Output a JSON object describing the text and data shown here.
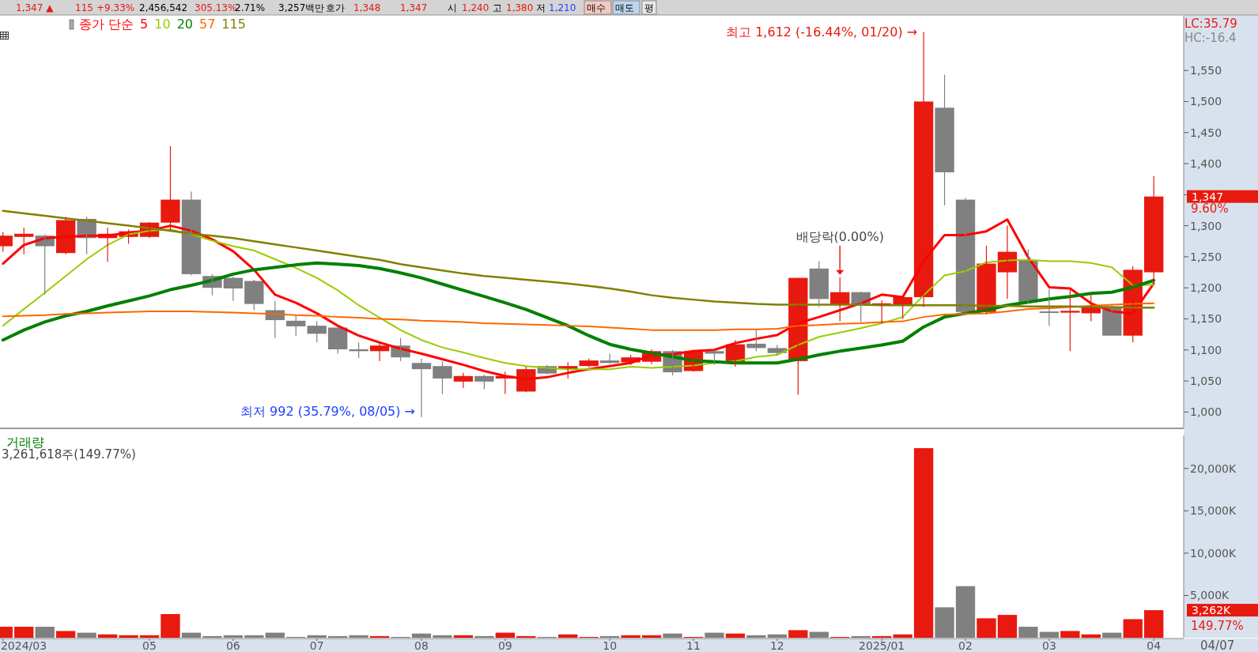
{
  "chart_data": [
    {
      "type": "candlestick",
      "legend_title": "종가 단순",
      "legend": "top left",
      "tick_labels": "y",
      "x": [
        "2024-03-18",
        "2024-03-25",
        "2024-04-01",
        "2024-04-08",
        "2024-04-15",
        "2024-04-22",
        "2024-04-29",
        "2024-05-06",
        "2024-05-13",
        "2024-05-20",
        "2024-05-27",
        "2024-06-03",
        "2024-06-10",
        "2024-06-17",
        "2024-06-24",
        "2024-07-01",
        "2024-07-08",
        "2024-07-15",
        "2024-07-22",
        "2024-07-29",
        "2024-08-05",
        "2024-08-12",
        "2024-08-19",
        "2024-08-26",
        "2024-09-02",
        "2024-09-09",
        "2024-09-16",
        "2024-09-23",
        "2024-09-30",
        "2024-10-07",
        "2024-10-14",
        "2024-10-21",
        "2024-10-28",
        "2024-11-04",
        "2024-11-11",
        "2024-11-18",
        "2024-11-25",
        "2024-12-02",
        "2024-12-09",
        "2024-12-16",
        "2024-12-23",
        "2024-12-30",
        "2025-01-06",
        "2025-01-13",
        "2025-01-20",
        "2025-01-27",
        "2025-02-03",
        "2025-02-10",
        "2025-02-17",
        "2025-02-24",
        "2025-03-03",
        "2025-03-10",
        "2025-03-17",
        "2025-03-24",
        "2025-03-31",
        "2025-04-07"
      ],
      "ohlc": [
        [
          1267,
          1290,
          1258,
          1284
        ],
        [
          1282,
          1297,
          1254,
          1287
        ],
        [
          1284,
          1286,
          1189,
          1267
        ],
        [
          1256,
          1314,
          1254,
          1309
        ],
        [
          1311,
          1314,
          1254,
          1280
        ],
        [
          1280,
          1297,
          1242,
          1287
        ],
        [
          1282,
          1294,
          1271,
          1291
        ],
        [
          1282,
          1306,
          1280,
          1305
        ],
        [
          1305,
          1428,
          1293,
          1342
        ],
        [
          1342,
          1355,
          1220,
          1222
        ],
        [
          1219,
          1222,
          1188,
          1200
        ],
        [
          1216,
          1218,
          1179,
          1199
        ],
        [
          1211,
          1213,
          1164,
          1174
        ],
        [
          1164,
          1179,
          1119,
          1148
        ],
        [
          1147,
          1155,
          1123,
          1138
        ],
        [
          1139,
          1146,
          1112,
          1126
        ],
        [
          1136,
          1138,
          1094,
          1101
        ],
        [
          1101,
          1112,
          1087,
          1098
        ],
        [
          1098,
          1112,
          1082,
          1107
        ],
        [
          1107,
          1119,
          1082,
          1088
        ],
        [
          1079,
          1086,
          992,
          1069
        ],
        [
          1074,
          1082,
          1029,
          1054
        ],
        [
          1049,
          1063,
          1039,
          1058
        ],
        [
          1058,
          1060,
          1037,
          1049
        ],
        [
          1054,
          1065,
          1029,
          1058
        ],
        [
          1033,
          1073,
          1032,
          1069
        ],
        [
          1074,
          1076,
          1061,
          1062
        ],
        [
          1069,
          1080,
          1054,
          1074
        ],
        [
          1074,
          1086,
          1072,
          1083
        ],
        [
          1083,
          1094,
          1078,
          1079
        ],
        [
          1080,
          1092,
          1076,
          1088
        ],
        [
          1081,
          1101,
          1077,
          1098
        ],
        [
          1098,
          1100,
          1059,
          1064
        ],
        [
          1066,
          1100,
          1065,
          1098
        ],
        [
          1098,
          1100,
          1076,
          1094
        ],
        [
          1081,
          1116,
          1073,
          1109
        ],
        [
          1110,
          1132,
          1098,
          1103
        ],
        [
          1103,
          1108,
          1092,
          1095
        ],
        [
          1082,
          1216,
          1028,
          1216
        ],
        [
          1231,
          1243,
          1169,
          1182
        ],
        [
          1172,
          1217,
          1146,
          1193
        ],
        [
          1193,
          1194,
          1145,
          1172
        ],
        [
          1171,
          1180,
          1143,
          1175
        ],
        [
          1173,
          1186,
          1150,
          1185
        ],
        [
          1185,
          1612,
          1169,
          1500
        ],
        [
          1490,
          1543,
          1333,
          1386
        ],
        [
          1342,
          1345,
          1159,
          1161
        ],
        [
          1161,
          1268,
          1158,
          1239
        ],
        [
          1225,
          1300,
          1182,
          1258
        ],
        [
          1244,
          1262,
          1175,
          1177
        ],
        [
          1162,
          1198,
          1139,
          1161
        ],
        [
          1160,
          1196,
          1098,
          1163
        ],
        [
          1159,
          1191,
          1146,
          1171
        ],
        [
          1169,
          1172,
          1122,
          1123
        ],
        [
          1123,
          1235,
          1112,
          1229
        ],
        [
          1225,
          1380,
          1210,
          1347
        ]
      ],
      "colors": [
        "#e8190e",
        "#e8190e",
        "#808080",
        "#e8190e",
        "#808080",
        "#e8190e",
        "#e8190e",
        "#e8190e",
        "#e8190e",
        "#808080",
        "#808080",
        "#808080",
        "#808080",
        "#808080",
        "#808080",
        "#808080",
        "#808080",
        "#808080",
        "#e8190e",
        "#808080",
        "#808080",
        "#808080",
        "#e8190e",
        "#808080",
        "#e8190e",
        "#e8190e",
        "#808080",
        "#e8190e",
        "#e8190e",
        "#808080",
        "#e8190e",
        "#e8190e",
        "#808080",
        "#e8190e",
        "#808080",
        "#e8190e",
        "#808080",
        "#808080",
        "#e8190e",
        "#808080",
        "#e8190e",
        "#808080",
        "#e8190e",
        "#e8190e",
        "#e8190e",
        "#808080",
        "#808080",
        "#e8190e",
        "#e8190e",
        "#808080",
        "#808080",
        "#e8190e",
        "#e8190e",
        "#808080",
        "#e8190e",
        "#e8190e"
      ],
      "series": [
        {
          "type": "line",
          "name": "5",
          "color": "#ff0000",
          "values": [
            1239,
            1269,
            1280,
            1282,
            1284,
            1284,
            1289,
            1292,
            1300,
            1292,
            1278,
            1259,
            1229,
            1189,
            1176,
            1159,
            1139,
            1123,
            1112,
            1102,
            1094,
            1085,
            1076,
            1066,
            1058,
            1053,
            1056,
            1063,
            1069,
            1074,
            1079,
            1092,
            1093,
            1098,
            1100,
            1111,
            1118,
            1124,
            1143,
            1153,
            1164,
            1175,
            1189,
            1185,
            1243,
            1285,
            1285,
            1291,
            1310,
            1249,
            1201,
            1199,
            1175,
            1162,
            1159,
            1207
          ]
        },
        {
          "type": "line",
          "name": "10",
          "color": "#99cc00",
          "values": [
            1139,
            1166,
            1192,
            1219,
            1246,
            1269,
            1286,
            1292,
            1294,
            1286,
            1276,
            1267,
            1260,
            1246,
            1232,
            1216,
            1196,
            1172,
            1152,
            1132,
            1116,
            1104,
            1096,
            1087,
            1079,
            1074,
            1071,
            1069,
            1069,
            1069,
            1073,
            1071,
            1073,
            1075,
            1079,
            1082,
            1089,
            1092,
            1108,
            1121,
            1128,
            1135,
            1143,
            1153,
            1188,
            1220,
            1227,
            1241,
            1244,
            1245,
            1243,
            1243,
            1240,
            1233,
            1204,
            1205
          ]
        },
        {
          "type": "line",
          "name": "20",
          "color": "#008000",
          "values": [
            1116,
            1132,
            1145,
            1155,
            1162,
            1171,
            1179,
            1187,
            1197,
            1204,
            1212,
            1222,
            1229,
            1233,
            1237,
            1240,
            1238,
            1236,
            1231,
            1224,
            1216,
            1206,
            1196,
            1186,
            1176,
            1165,
            1152,
            1139,
            1123,
            1109,
            1101,
            1095,
            1089,
            1083,
            1081,
            1079,
            1079,
            1079,
            1085,
            1092,
            1098,
            1103,
            1108,
            1114,
            1137,
            1153,
            1159,
            1164,
            1172,
            1177,
            1182,
            1186,
            1191,
            1193,
            1201,
            1212
          ]
        },
        {
          "type": "line",
          "name": "57",
          "color": "#ff6600",
          "values": [
            1154,
            1155,
            1156,
            1158,
            1159,
            1160,
            1161,
            1162,
            1162,
            1162,
            1161,
            1160,
            1159,
            1158,
            1156,
            1155,
            1153,
            1152,
            1150,
            1149,
            1147,
            1146,
            1145,
            1143,
            1142,
            1141,
            1140,
            1139,
            1138,
            1136,
            1134,
            1132,
            1132,
            1132,
            1132,
            1133,
            1133,
            1134,
            1139,
            1140,
            1142,
            1143,
            1145,
            1146,
            1153,
            1157,
            1158,
            1159,
            1162,
            1166,
            1167,
            1169,
            1171,
            1173,
            1174,
            1175
          ]
        },
        {
          "type": "line",
          "name": "115",
          "color": "#808000",
          "values": [
            1324,
            1320,
            1316,
            1312,
            1308,
            1304,
            1300,
            1296,
            1292,
            1287,
            1284,
            1280,
            1275,
            1270,
            1265,
            1260,
            1255,
            1250,
            1245,
            1238,
            1233,
            1228,
            1223,
            1219,
            1216,
            1213,
            1210,
            1207,
            1203,
            1199,
            1194,
            1188,
            1184,
            1181,
            1178,
            1176,
            1174,
            1173,
            1173,
            1173,
            1173,
            1173,
            1172,
            1172,
            1172,
            1172,
            1172,
            1171,
            1171,
            1170,
            1170,
            1170,
            1169,
            1169,
            1168,
            1168
          ]
        }
      ],
      "xlim": [
        "2024-03-17",
        "2025-04-17"
      ],
      "ylim": [
        975,
        1638
      ],
      "yticks": [
        {
          "value": 1000,
          "label": "1,000"
        },
        {
          "value": 1050,
          "label": "1,050"
        },
        {
          "value": 1100,
          "label": "1,100"
        },
        {
          "value": 1150,
          "label": "1,150"
        },
        {
          "value": 1200,
          "label": "1,200"
        },
        {
          "value": 1250,
          "label": "1,250"
        },
        {
          "value": 1300,
          "label": "1,300"
        },
        {
          "value": 1350,
          "label": null
        },
        {
          "value": 1400,
          "label": "1,400"
        },
        {
          "value": 1450,
          "label": "1,450"
        },
        {
          "value": 1500,
          "label": "1,500"
        },
        {
          "value": 1550,
          "label": "1,550"
        }
      ],
      "annotations": [
        "1,347 ▲",
        "115",
        "+9.33%",
        "2,456,542",
        "305.13%",
        "2.71%",
        "3,257백만",
        "호가",
        "1,348",
        "1,347",
        "시",
        "1,240",
        "고",
        "1,380",
        "저",
        "1,210",
        "매수",
        "매도",
        "평",
        "LC:35.79",
        "HC:-16.4",
        "9.60%",
        "1,347",
        {
          "text": "최고 1,612 (-16.44%, 01/20) →",
          "x": "2025-01-20",
          "y": 1612
        },
        {
          "text": "최저 992 (35.79%, 08/05) →",
          "x": "2024-08-05",
          "y": 992
        },
        {
          "text": "배당락(0.00%)",
          "x": "2024-12-23",
          "y": 1217
        }
      ]
    },
    {
      "type": "bar",
      "title": "거래량",
      "subtitle": "3,261,618주(149.77%)",
      "x": [
        "2024-03-18",
        "2024-03-25",
        "2024-04-01",
        "2024-04-08",
        "2024-04-15",
        "2024-04-22",
        "2024-04-29",
        "2024-05-06",
        "2024-05-13",
        "2024-05-20",
        "2024-05-27",
        "2024-06-03",
        "2024-06-10",
        "2024-06-17",
        "2024-06-24",
        "2024-07-01",
        "2024-07-08",
        "2024-07-15",
        "2024-07-22",
        "2024-07-29",
        "2024-08-05",
        "2024-08-12",
        "2024-08-19",
        "2024-08-26",
        "2024-09-02",
        "2024-09-09",
        "2024-09-16",
        "2024-09-23",
        "2024-09-30",
        "2024-10-07",
        "2024-10-14",
        "2024-10-21",
        "2024-10-28",
        "2024-11-04",
        "2024-11-11",
        "2024-11-18",
        "2024-11-25",
        "2024-12-02",
        "2024-12-09",
        "2024-12-16",
        "2024-12-23",
        "2024-12-30",
        "2025-01-06",
        "2025-01-13",
        "2025-01-20",
        "2025-01-27",
        "2025-02-03",
        "2025-02-10",
        "2025-02-17",
        "2025-02-24",
        "2025-03-03",
        "2025-03-10",
        "2025-03-17",
        "2025-03-24",
        "2025-03-31",
        "2025-04-07"
      ],
      "values": [
        1300,
        1300,
        1300,
        800,
        600,
        400,
        300,
        300,
        2800,
        600,
        200,
        300,
        300,
        600,
        100,
        300,
        200,
        300,
        200,
        100,
        500,
        300,
        300,
        200,
        600,
        200,
        100,
        400,
        100,
        200,
        300,
        300,
        500,
        100,
        600,
        500,
        300,
        400,
        900,
        700,
        100,
        200,
        200,
        400,
        22400,
        3600,
        6100,
        2300,
        2700,
        1300,
        700,
        800,
        400,
        600,
        2200,
        3262
      ],
      "colors": [
        "#e8190e",
        "#e8190e",
        "#808080",
        "#e8190e",
        "#808080",
        "#e8190e",
        "#e8190e",
        "#e8190e",
        "#e8190e",
        "#808080",
        "#808080",
        "#808080",
        "#808080",
        "#808080",
        "#808080",
        "#808080",
        "#808080",
        "#808080",
        "#e8190e",
        "#808080",
        "#808080",
        "#808080",
        "#e8190e",
        "#808080",
        "#e8190e",
        "#e8190e",
        "#808080",
        "#e8190e",
        "#e8190e",
        "#808080",
        "#e8190e",
        "#e8190e",
        "#808080",
        "#e8190e",
        "#808080",
        "#e8190e",
        "#808080",
        "#808080",
        "#e8190e",
        "#808080",
        "#e8190e",
        "#808080",
        "#e8190e",
        "#e8190e",
        "#e8190e",
        "#808080",
        "#808080",
        "#e8190e",
        "#e8190e",
        "#808080",
        "#808080",
        "#e8190e",
        "#e8190e",
        "#808080",
        "#e8190e",
        "#e8190e"
      ],
      "xlim": [
        "2024-03-17",
        "2025-04-17"
      ],
      "xticks": [
        {
          "value": "2024-03-18",
          "label": "2024/03"
        },
        {
          "value": "2024-05-06",
          "label": "05"
        },
        {
          "value": "2024-06-03",
          "label": "06"
        },
        {
          "value": "2024-07-01",
          "label": "07"
        },
        {
          "value": "2024-08-05",
          "label": "08"
        },
        {
          "value": "2024-09-02",
          "label": "09"
        },
        {
          "value": "2024-10-07",
          "label": "10"
        },
        {
          "value": "2024-11-04",
          "label": "11"
        },
        {
          "value": "2024-12-02",
          "label": "12"
        },
        {
          "value": "2025-01-06",
          "label": "2025/01"
        },
        {
          "value": "2025-02-03",
          "label": "02"
        },
        {
          "value": "2025-03-03",
          "label": "03"
        },
        {
          "value": "2025-04-07",
          "label": "04"
        }
      ],
      "ylim": [
        0,
        23900
      ],
      "yticks": [
        {
          "value": 5000,
          "label": "5,000K"
        },
        {
          "value": 10000,
          "label": "10,000K"
        },
        {
          "value": 15000,
          "label": "15,000K"
        },
        {
          "value": 20000,
          "label": "20,000K"
        }
      ],
      "annotations": [
        "149.77%",
        "04/07",
        "3,262K"
      ]
    }
  ]
}
